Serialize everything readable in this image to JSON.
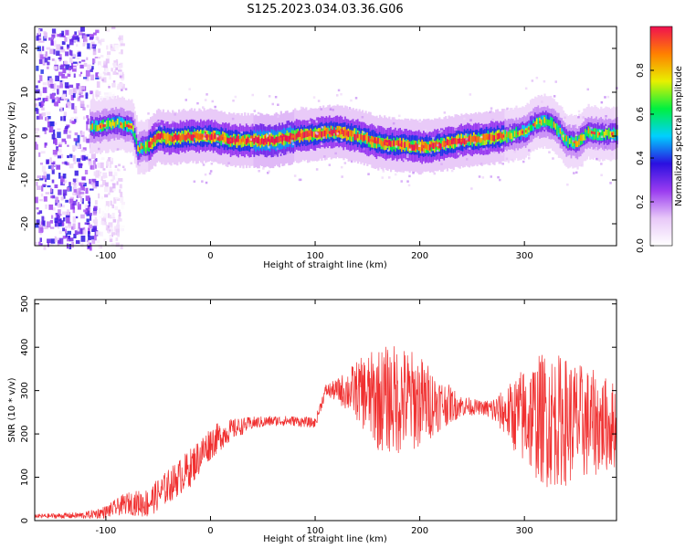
{
  "title": "S125.2023.034.03.36.G06",
  "chart_data": [
    {
      "type": "heatmap",
      "xlabel": "Height of straight line (km)",
      "ylabel": "Frequency (Hz)",
      "xlim": [
        -168,
        388
      ],
      "ylim": [
        -25,
        25
      ],
      "xticks": [
        -100,
        0,
        100,
        200,
        300
      ],
      "yticks": [
        -20,
        -10,
        0,
        10,
        20
      ],
      "colorbar": {
        "label": "Normalized spectral amplitude",
        "range": [
          0,
          1
        ],
        "ticks": [
          0.0,
          0.2,
          0.4,
          0.6,
          0.8
        ],
        "colormap": [
          "#ffffff",
          "#e8c8f8",
          "#9a3cf0",
          "#2a10e0",
          "#00d0ff",
          "#00f040",
          "#e8f000",
          "#ff8000",
          "#f01050"
        ]
      },
      "ridge": {
        "x": [
          -110,
          -90,
          -75,
          -70,
          -60,
          -50,
          -40,
          -20,
          0,
          20,
          40,
          60,
          80,
          100,
          120,
          140,
          160,
          180,
          200,
          220,
          240,
          260,
          280,
          300,
          310,
          320,
          330,
          340,
          350,
          360,
          370,
          388
        ],
        "y": [
          2,
          3,
          2,
          -3,
          -2,
          0,
          -0.5,
          0,
          0,
          -1,
          -1,
          -1,
          0,
          0.5,
          1,
          0,
          -1.5,
          -2,
          -2.5,
          -2,
          -1,
          -0.5,
          0,
          1,
          3,
          3.5,
          2,
          -1,
          -1.5,
          1,
          0.5,
          0.5
        ]
      },
      "noise_region_x": [
        -168,
        -110
      ]
    },
    {
      "type": "line",
      "xlabel": "Height of straight line (km)",
      "ylabel": "SNR (10 * v/v)",
      "xlim": [
        -168,
        388
      ],
      "ylim": [
        0,
        510
      ],
      "xticks": [
        -100,
        0,
        100,
        200,
        300
      ],
      "yticks": [
        0,
        100,
        200,
        300,
        400,
        500
      ],
      "color": "#f03030",
      "series": [
        {
          "x": [
            -168,
            -120,
            -100,
            -80,
            -60,
            -40,
            -20,
            0,
            20,
            40,
            60,
            80,
            100,
            110,
            120,
            140,
            160,
            180,
            200,
            220,
            240,
            260,
            280,
            300,
            320,
            340,
            360,
            388
          ],
          "y": [
            10,
            12,
            20,
            40,
            40,
            80,
            120,
            180,
            210,
            225,
            230,
            230,
            225,
            300,
            300,
            300,
            280,
            280,
            275,
            270,
            265,
            260,
            250,
            240,
            235,
            230,
            225,
            220
          ],
          "amplitude": [
            5,
            8,
            15,
            25,
            35,
            40,
            45,
            40,
            25,
            15,
            12,
            12,
            12,
            15,
            25,
            70,
            120,
            130,
            110,
            60,
            25,
            15,
            50,
            120,
            160,
            150,
            130,
            100
          ]
        }
      ]
    }
  ]
}
